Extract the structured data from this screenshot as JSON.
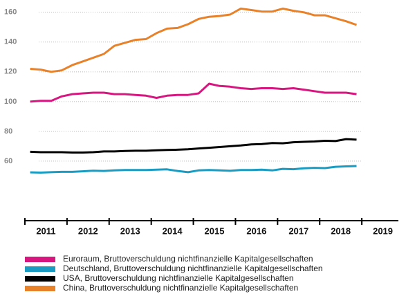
{
  "chart_data": {
    "type": "line",
    "xlim": [
      2011,
      2020
    ],
    "xticks": [
      2011,
      2012,
      2013,
      2014,
      2015,
      2016,
      2017,
      2018,
      2019,
      2020
    ],
    "year_labels": [
      2011,
      2012,
      2013,
      2014,
      2015,
      2016,
      2017,
      2018,
      2019
    ],
    "ylim": [
      20,
      165
    ],
    "yticks": [
      60,
      80,
      100,
      120,
      140,
      160
    ],
    "grid": true,
    "x": [
      2011.125,
      2011.375,
      2011.625,
      2011.875,
      2012.125,
      2012.375,
      2012.625,
      2012.875,
      2013.125,
      2013.375,
      2013.625,
      2013.875,
      2014.125,
      2014.375,
      2014.625,
      2014.875,
      2015.125,
      2015.375,
      2015.625,
      2015.875,
      2016.125,
      2016.375,
      2016.625,
      2016.875,
      2017.125,
      2017.375,
      2017.625,
      2017.875,
      2018.125,
      2018.375,
      2018.625,
      2018.875
    ],
    "series": [
      {
        "name": "Euroraum, Bruttoverschuldung nichtfinanzielle Kapitalgesellschaften",
        "color": "#d6177f",
        "values": [
          100,
          100.5,
          100.5,
          103.5,
          105,
          105.5,
          106,
          106,
          105,
          105,
          104.5,
          104,
          102.5,
          104,
          104.5,
          104.5,
          105.5,
          112,
          110.5,
          110,
          109,
          108.5,
          109,
          109,
          108.5,
          109,
          108,
          107,
          106,
          106,
          106,
          105
        ]
      },
      {
        "name": "Deutschland, Bruttoverschuldung nichtfinanzielle Kapitalgesellschaften",
        "color": "#1a9bc1",
        "values": [
          52.5,
          52.3,
          52.6,
          52.8,
          52.8,
          53.2,
          53.6,
          53.4,
          53.8,
          54,
          54,
          54,
          54.3,
          54.5,
          53.4,
          52.6,
          53.8,
          54,
          53.8,
          53.5,
          54,
          54,
          54.3,
          53.8,
          54.8,
          54.6,
          55.2,
          55.5,
          55.3,
          56.2,
          56.5,
          56.7
        ]
      },
      {
        "name": "USA, Bruttoverschuldung nichtfinanzielle Kapitalgesellschaften",
        "color": "#000000",
        "values": [
          66.3,
          66,
          66,
          66,
          65.8,
          65.8,
          66,
          66.5,
          66.5,
          66.8,
          67,
          67,
          67.3,
          67.5,
          67.7,
          68,
          68.5,
          69,
          69.5,
          70,
          70.5,
          71.2,
          71.5,
          72.2,
          72,
          72.7,
          73,
          73.2,
          73.7,
          73.5,
          74.8,
          74.4
        ]
      },
      {
        "name": "China, Bruttoverschuldung nichtfinanzielle Kapitalgesellschaften",
        "color": "#e8822a",
        "values": [
          122,
          121.5,
          120,
          121,
          124.5,
          127,
          129.5,
          132,
          137.5,
          139.5,
          141.5,
          142,
          146,
          149,
          149.5,
          152,
          155.5,
          157,
          157.5,
          158.5,
          162.5,
          161.5,
          160.5,
          160.5,
          162.5,
          161,
          160,
          158,
          158,
          156,
          154,
          151.5
        ]
      }
    ]
  }
}
